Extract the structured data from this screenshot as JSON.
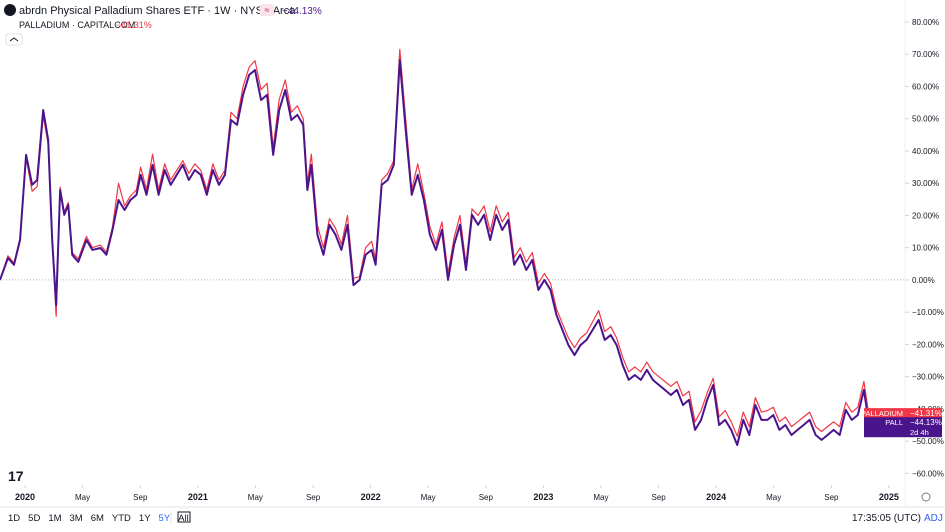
{
  "chart_data": {
    "type": "line",
    "x": [
      2019.855,
      2019.901,
      2019.936,
      2019.971,
      2020.006,
      2020.041,
      2020.07,
      2020.105,
      2020.134,
      2020.157,
      2020.18,
      2020.203,
      2020.227,
      2020.25,
      2020.273,
      2020.308,
      2020.355,
      2020.39,
      2020.436,
      2020.471,
      2020.506,
      2020.541,
      2020.576,
      2020.61,
      2020.645,
      2020.669,
      2020.703,
      2020.738,
      2020.773,
      2020.808,
      2020.843,
      2020.878,
      2020.913,
      2020.948,
      2020.983,
      2021.017,
      2021.052,
      2021.087,
      2021.122,
      2021.157,
      2021.192,
      2021.227,
      2021.262,
      2021.297,
      2021.331,
      2021.366,
      2021.401,
      2021.436,
      2021.471,
      2021.506,
      2021.541,
      2021.576,
      2021.61,
      2021.634,
      2021.657,
      2021.692,
      2021.727,
      2021.762,
      2021.797,
      2021.831,
      2021.866,
      2021.901,
      2021.936,
      2021.971,
      2022.006,
      2022.029,
      2022.064,
      2022.099,
      2022.134,
      2022.169,
      2022.203,
      2022.238,
      2022.273,
      2022.308,
      2022.343,
      2022.378,
      2022.413,
      2022.448,
      2022.483,
      2022.517,
      2022.552,
      2022.587,
      2022.622,
      2022.657,
      2022.692,
      2022.727,
      2022.762,
      2022.797,
      2022.831,
      2022.866,
      2022.901,
      2022.936,
      2022.971,
      2023.006,
      2023.041,
      2023.076,
      2023.11,
      2023.145,
      2023.18,
      2023.215,
      2023.25,
      2023.285,
      2023.32,
      2023.355,
      2023.39,
      2023.424,
      2023.459,
      2023.494,
      2023.529,
      2023.564,
      2023.599,
      2023.634,
      2023.669,
      2023.703,
      2023.738,
      2023.773,
      2023.808,
      2023.843,
      2023.878,
      2023.913,
      2023.948,
      2023.983,
      2024.017,
      2024.052,
      2024.087,
      2024.122,
      2024.157,
      2024.192,
      2024.227,
      2024.262,
      2024.297,
      2024.331,
      2024.366,
      2024.401,
      2024.436,
      2024.471,
      2024.506,
      2024.541,
      2024.576,
      2024.61,
      2024.645,
      2024.68,
      2024.715,
      2024.75,
      2024.785,
      2024.82,
      2024.855,
      2024.89,
      2024.924
    ],
    "series": [
      {
        "name": "PALLADIUM",
        "title": "PALLADIUM · CAPITALCOM",
        "last_label": "−41.31%",
        "color": "#f23645",
        "values": [
          0,
          7.5,
          5.2,
          13,
          38,
          27.5,
          29,
          51,
          42,
          12,
          -11.3,
          28.8,
          21,
          24,
          8.5,
          6.5,
          13.5,
          10,
          10.8,
          8.6,
          16.5,
          30,
          23,
          26,
          28,
          35,
          28,
          39,
          28,
          36,
          31,
          34,
          37,
          33,
          36,
          34,
          28,
          36,
          31,
          34,
          52,
          50,
          60,
          66,
          68,
          59,
          61,
          41,
          56,
          62,
          52,
          54,
          50,
          30,
          39,
          17,
          10,
          19,
          16,
          11,
          20,
          0.5,
          1,
          10,
          12,
          6.5,
          31,
          33,
          37,
          71.5,
          50,
          28,
          36,
          27,
          16.5,
          11,
          18,
          2,
          13,
          20,
          5,
          22,
          20,
          23,
          15,
          23,
          18,
          21,
          7,
          10,
          5.5,
          8.5,
          -1,
          2,
          -1,
          -9,
          -13.5,
          -18,
          -21,
          -18,
          -16.5,
          -13,
          -9.5,
          -16,
          -14.5,
          -18,
          -24,
          -28.5,
          -27,
          -28.5,
          -25.5,
          -28.5,
          -30,
          -31.5,
          -33,
          -31.5,
          -36,
          -34.5,
          -44,
          -40.5,
          -35,
          -30.5,
          -42.5,
          -40.5,
          -44,
          -48.5,
          -41,
          -45.5,
          -36.5,
          -41,
          -40.5,
          -39.5,
          -44,
          -42.5,
          -45.5,
          -44,
          -42.5,
          -41,
          -45.5,
          -47,
          -45.5,
          -44,
          -45.5,
          -38,
          -41,
          -39.5,
          -31.5,
          -44,
          -41.31
        ]
      },
      {
        "name": "PALL",
        "title": "abrdn Physical Palladium Shares ETF · 1W · NYSE Arca",
        "last_label": "−44.13%",
        "extra_label": "2d 4h",
        "color": "#4a148c",
        "values": [
          0,
          6.8,
          4.7,
          12.4,
          38.8,
          29.5,
          31,
          52.7,
          43.4,
          12.4,
          -7.8,
          27.9,
          20.2,
          23.3,
          7.8,
          5.6,
          12.4,
          9.3,
          9.9,
          7.8,
          15.5,
          24.8,
          21.7,
          24.8,
          26.4,
          32.6,
          26.4,
          35.7,
          26.4,
          34.1,
          29.5,
          32.6,
          35.7,
          31,
          34.1,
          32.6,
          26.4,
          34.1,
          29.5,
          32.6,
          49.6,
          48.1,
          57.4,
          63.6,
          65.1,
          55.8,
          57.4,
          38.8,
          52.7,
          58.9,
          49.6,
          51.2,
          48.1,
          27.9,
          35.7,
          14,
          7.8,
          17.1,
          14,
          9.3,
          17.1,
          -1.6,
          0,
          7.8,
          9.3,
          4.7,
          29.5,
          31,
          35.7,
          68.2,
          46.5,
          26.4,
          32.6,
          24.8,
          14,
          9.3,
          15.5,
          0,
          10.9,
          17.1,
          3.1,
          20.2,
          17.1,
          20.2,
          12.4,
          20.2,
          15.5,
          18.6,
          4.7,
          7.8,
          3.1,
          6.2,
          -3.1,
          0,
          -3.1,
          -10.9,
          -15.5,
          -20.2,
          -23.3,
          -20.2,
          -18.6,
          -15.5,
          -12.4,
          -18.6,
          -17.1,
          -20.2,
          -26.4,
          -31,
          -29.5,
          -31,
          -27.9,
          -31,
          -32.6,
          -34.1,
          -35.7,
          -34.1,
          -38.8,
          -37.2,
          -46.5,
          -43.4,
          -37.2,
          -32.6,
          -45,
          -43.4,
          -46.5,
          -51.2,
          -43.4,
          -48.1,
          -38.8,
          -43.4,
          -43.4,
          -41.9,
          -46.5,
          -45,
          -48.1,
          -46.5,
          -45,
          -43.4,
          -48.1,
          -49.6,
          -48.1,
          -46.5,
          -48.1,
          -40.3,
          -43.4,
          -41.9,
          -34.1,
          -46.5,
          -44.13
        ]
      }
    ],
    "xlim": [
      2019.855,
      2025.093
    ],
    "xticks": [
      {
        "value": 2020,
        "label": "2020"
      },
      {
        "value": 2020.333,
        "label": "May"
      },
      {
        "value": 2020.667,
        "label": "Sep"
      },
      {
        "value": 2021,
        "label": "2021"
      },
      {
        "value": 2021.333,
        "label": "May"
      },
      {
        "value": 2021.667,
        "label": "Sep"
      },
      {
        "value": 2022,
        "label": "2022"
      },
      {
        "value": 2022.333,
        "label": "May"
      },
      {
        "value": 2022.667,
        "label": "Sep"
      },
      {
        "value": 2023,
        "label": "2023"
      },
      {
        "value": 2023.333,
        "label": "May"
      },
      {
        "value": 2023.667,
        "label": "Sep"
      },
      {
        "value": 2024,
        "label": "2024"
      },
      {
        "value": 2024.333,
        "label": "May"
      },
      {
        "value": 2024.667,
        "label": "Sep"
      },
      {
        "value": 2025,
        "label": "2025"
      }
    ],
    "ylim": [
      -63.6,
      83.1
    ],
    "yticks": [
      {
        "value": -60,
        "label": "−60.00%"
      },
      {
        "value": -50,
        "label": "−50.00%"
      },
      {
        "value": -40,
        "label": "−40.00%"
      },
      {
        "value": -30,
        "label": "−30.00%"
      },
      {
        "value": -20,
        "label": "−20.00%"
      },
      {
        "value": -10,
        "label": "−10.00%"
      },
      {
        "value": 0,
        "label": "0.00%"
      },
      {
        "value": 10,
        "label": "10.00%"
      },
      {
        "value": 20,
        "label": "20.00%"
      },
      {
        "value": 30,
        "label": "30.00%"
      },
      {
        "value": 40,
        "label": "40.00%"
      },
      {
        "value": 50,
        "label": "50.00%"
      },
      {
        "value": 60,
        "label": "60.00%"
      },
      {
        "value": 70,
        "label": "70.00%"
      },
      {
        "value": 80,
        "label": "80.00%"
      }
    ],
    "grid": false,
    "toolbar": {
      "ranges": [
        "1D",
        "5D",
        "1M",
        "3M",
        "6M",
        "YTD",
        "1Y",
        "5Y",
        "All"
      ],
      "active": "5Y",
      "time": "17:35:05 (UTC)",
      "adj": "ADJ"
    }
  }
}
